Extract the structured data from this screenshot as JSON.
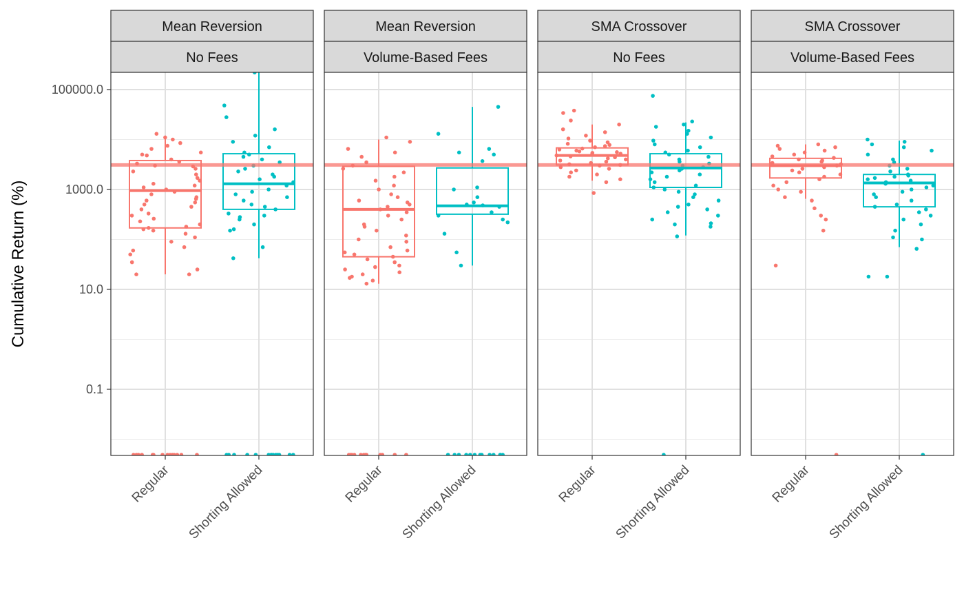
{
  "chart_data": {
    "type": "box",
    "ylabel": "Cumulative Return (%)",
    "xlabel": "",
    "y_scale": "log10",
    "y_ticks": [
      0.1,
      10.0,
      1000.0,
      100000.0
    ],
    "y_tick_labels": [
      "0.1",
      "10.0",
      "1000.0",
      "100000.0"
    ],
    "ylim": [
      0.005,
      220000
    ],
    "reference_line": 3100,
    "grid": true,
    "legend": "none",
    "categories": [
      "Regular",
      "Shorting Allowed"
    ],
    "colors": {
      "Regular": "#F8766D",
      "Shorting Allowed": "#00BFC4",
      "reference_line": "#F8766D",
      "strip_fill": "#D9D9D9"
    },
    "panels": [
      {
        "strategy": "Mean Reversion",
        "fees": "No Fees",
        "boxes": [
          {
            "category": "Regular",
            "whisker_low": 20,
            "q1": 170,
            "median": 950,
            "q3": 3800,
            "whisker_high": 12000,
            "points": [
              20,
              20,
              25,
              35,
              50,
              60,
              70,
              90,
              110,
              130,
              150,
              160,
              170,
              180,
              200,
              230,
              260,
              300,
              330,
              400,
              450,
              500,
              550,
              600,
              650,
              700,
              800,
              900,
              1000,
              1100,
              1200,
              1300,
              1500,
              1700,
              2000,
              2300,
              2600,
              2900,
              3000,
              3300,
              3600,
              4000,
              4800,
              5000,
              5500,
              6500,
              7500,
              8500,
              10000,
              11000,
              13000,
              0.005,
              0.005,
              0.005,
              0.005,
              0.005,
              0.005,
              0.005,
              0.005,
              0.005,
              0.005,
              0.005,
              0.005,
              0.005,
              0.005
            ]
          },
          {
            "category": "Shorting Allowed",
            "whisker_low": 42,
            "q1": 400,
            "median": 1300,
            "q3": 5200,
            "whisker_high": 220000,
            "points": [
              42,
              70,
              150,
              160,
              200,
              250,
              280,
              300,
              330,
              400,
              450,
              500,
              600,
              700,
              800,
              900,
              1000,
              1200,
              1400,
              1600,
              1800,
              2000,
              2300,
              2600,
              3000,
              3500,
              4000,
              4500,
              5000,
              5500,
              7000,
              9000,
              12000,
              16000,
              28000,
              48000,
              220000,
              0.005,
              0.005,
              0.005,
              0.005,
              0.005,
              0.005,
              0.005,
              0.005,
              0.005,
              0.005,
              0.005,
              0.005,
              0.005,
              0.005
            ]
          }
        ]
      },
      {
        "strategy": "Mean Reversion",
        "fees": "Volume-Based Fees",
        "boxes": [
          {
            "category": "Regular",
            "whisker_low": 13,
            "q1": 45,
            "median": 400,
            "q3": 2900,
            "whisker_high": 10000,
            "points": [
              13,
              15,
              17,
              18,
              20,
              22,
              25,
              28,
              30,
              35,
              40,
              45,
              50,
              55,
              60,
              70,
              90,
              100,
              120,
              150,
              180,
              200,
              250,
              300,
              350,
              400,
              450,
              500,
              550,
              600,
              700,
              800,
              1000,
              1200,
              1500,
              1800,
              2200,
              2600,
              3000,
              3500,
              4500,
              5500,
              6500,
              9000,
              11000,
              0.005,
              0.005,
              0.005,
              0.005,
              0.005,
              0.005,
              0.005,
              0.005,
              0.005,
              0.005,
              0.005,
              0.005
            ]
          },
          {
            "category": "Shorting Allowed",
            "whisker_low": 30,
            "q1": 320,
            "median": 470,
            "q3": 2700,
            "whisker_high": 45000,
            "points": [
              30,
              55,
              130,
              220,
              250,
              300,
              350,
              450,
              480,
              500,
              550,
              700,
              1000,
              1100,
              3700,
              5000,
              5500,
              6500,
              13000,
              45000,
              0.005,
              0.005,
              0.005,
              0.005,
              0.005,
              0.005,
              0.005,
              0.005,
              0.005,
              0.005,
              0.005,
              0.005,
              0.005
            ]
          }
        ]
      },
      {
        "strategy": "SMA Crossover",
        "fees": "No Fees",
        "boxes": [
          {
            "category": "Regular",
            "whisker_low": 1500,
            "q1": 3100,
            "median": 4800,
            "q3": 6800,
            "whisker_high": 20000,
            "points": [
              850,
              1400,
              1600,
              1800,
              2000,
              2200,
              2400,
              2600,
              2800,
              3000,
              3100,
              3200,
              3400,
              3600,
              3800,
              4000,
              4200,
              4400,
              4600,
              4800,
              5000,
              5200,
              5400,
              5600,
              5800,
              6000,
              6300,
              6600,
              7000,
              7400,
              7800,
              8200,
              8800,
              9500,
              10500,
              12000,
              14000,
              16000,
              20000,
              24000,
              34000,
              38000
            ]
          },
          {
            "category": "Shorting Allowed",
            "whisker_low": 120,
            "q1": 1100,
            "median": 2700,
            "q3": 5200,
            "whisker_high": 22000,
            "points": [
              115,
              180,
              200,
              210,
              250,
              300,
              350,
              400,
              450,
              500,
              600,
              700,
              800,
              900,
              1000,
              1100,
              1200,
              1400,
              1600,
              1800,
              2000,
              2200,
              2400,
              2600,
              2800,
              3000,
              3300,
              3600,
              4000,
              4500,
              5000,
              5500,
              6000,
              7000,
              8000,
              9500,
              11000,
              13000,
              15000,
              18000,
              20000,
              23000,
              75000,
              0.005
            ]
          }
        ]
      },
      {
        "strategy": "SMA Crossover",
        "fees": "Volume-Based Fees",
        "boxes": [
          {
            "category": "Regular",
            "whisker_low": 650,
            "q1": 1700,
            "median": 3000,
            "q3": 4200,
            "whisker_high": 8000,
            "points": [
              30,
              150,
              250,
              300,
              420,
              600,
              700,
              900,
              1000,
              1200,
              1400,
              1600,
              1800,
              2000,
              2200,
              2400,
              2600,
              2800,
              3000,
              3200,
              3400,
              3600,
              3800,
              4000,
              4300,
              4600,
              5000,
              5500,
              6000,
              6500,
              7000,
              7500,
              8000,
              0.005
            ]
          },
          {
            "category": "Shorting Allowed",
            "whisker_low": 70,
            "q1": 450,
            "median": 1350,
            "q3": 2000,
            "whisker_high": 9500,
            "points": [
              18,
              18,
              65,
              100,
              110,
              150,
              200,
              250,
              300,
              350,
              400,
              450,
              500,
              600,
              700,
              800,
              900,
              1000,
              1100,
              1200,
              1300,
              1400,
              1500,
              1600,
              1700,
              1800,
              1900,
              2000,
              2300,
              2600,
              3000,
              3500,
              4000,
              5000,
              6000,
              7000,
              8000,
              9000,
              10000,
              0.005
            ]
          }
        ]
      }
    ]
  }
}
